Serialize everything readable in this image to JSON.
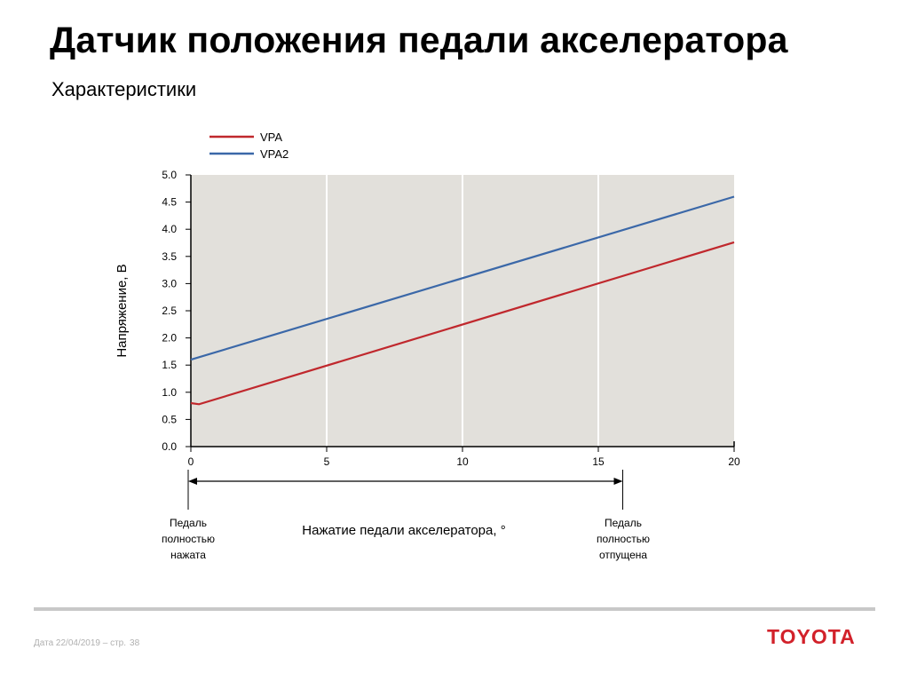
{
  "slide": {
    "title": "Датчик положения педали акселератора",
    "subtitle": "Характеристики"
  },
  "chart_data": {
    "type": "line",
    "title": "",
    "xlabel": "Нажатие педали акселератора, °",
    "ylabel": "Напряжение, В",
    "xlim": [
      0,
      20
    ],
    "ylim": [
      0,
      5
    ],
    "x_ticks": [
      "0",
      "5",
      "10",
      "15",
      "20"
    ],
    "y_ticks": [
      "0.0",
      "0.5",
      "1.0",
      "1.5",
      "2.0",
      "2.5",
      "3.0",
      "3.5",
      "4.0",
      "4.5",
      "5.0"
    ],
    "grid": "vertical",
    "legend_position": "top-left",
    "series": [
      {
        "name": "VPA",
        "color": "#c0282d",
        "points": [
          [
            0,
            0.8
          ],
          [
            0.3,
            0.78
          ],
          [
            20,
            3.76
          ]
        ]
      },
      {
        "name": "VPA2",
        "color": "#3b68a8",
        "points": [
          [
            0,
            1.6
          ],
          [
            20,
            4.6
          ]
        ]
      }
    ],
    "annotations": {
      "start_label": "Педаль полностью нажата",
      "end_label": "Педаль полностью отпущена",
      "range": [
        0,
        15.9
      ]
    }
  },
  "footer": {
    "date_text": "Дата 22/04/2019 – стр.",
    "page": "38",
    "brand": "TOYOTA"
  }
}
